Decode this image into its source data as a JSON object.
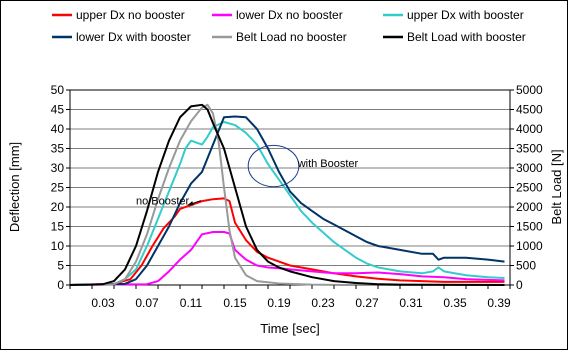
{
  "chart_data": {
    "type": "line",
    "xlabel": "Time [sec]",
    "ylabel": "Deflection [mm]",
    "y2label": "Belt Load [N]",
    "xlim": [
      0,
      0.4
    ],
    "ylim": [
      0,
      50
    ],
    "y2lim": [
      0,
      5000
    ],
    "x_ticks": [
      0.03,
      0.07,
      0.11,
      0.15,
      0.19,
      0.23,
      0.27,
      0.31,
      0.35,
      0.39
    ],
    "x_tick_labels": [
      "0.03",
      "0.07",
      "0.11",
      "0.15",
      "0.19",
      "0.23",
      "0.27",
      "0.31",
      "0.35",
      "0.39"
    ],
    "y_ticks": [
      0,
      5,
      10,
      15,
      20,
      25,
      30,
      35,
      40,
      45,
      50
    ],
    "y_tick_labels": [
      "0",
      "5",
      "10",
      "15",
      "20",
      "25",
      "30",
      "35",
      "40",
      "45",
      "50"
    ],
    "y2_ticks": [
      0,
      500,
      1000,
      1500,
      2000,
      2500,
      3000,
      3500,
      4000,
      4500,
      5000
    ],
    "y2_tick_labels": [
      "0",
      "500",
      "1000",
      "1500",
      "2000",
      "2500",
      "3000",
      "3500",
      "4000",
      "4500",
      "5000"
    ],
    "grid": "horizontal",
    "legend_placement": "top",
    "series": [
      {
        "name": "upper Dx no booster",
        "color": "#ff0000",
        "axis": "left",
        "points": [
          [
            0,
            0
          ],
          [
            0.04,
            0.3
          ],
          [
            0.055,
            1.5
          ],
          [
            0.065,
            5
          ],
          [
            0.075,
            10
          ],
          [
            0.085,
            14.5
          ],
          [
            0.095,
            17.5
          ],
          [
            0.1,
            19.5
          ],
          [
            0.11,
            20.5
          ],
          [
            0.12,
            21.5
          ],
          [
            0.13,
            22
          ],
          [
            0.14,
            22.2
          ],
          [
            0.145,
            21.5
          ],
          [
            0.15,
            16
          ],
          [
            0.16,
            11.5
          ],
          [
            0.17,
            8.5
          ],
          [
            0.18,
            7
          ],
          [
            0.19,
            6
          ],
          [
            0.2,
            5
          ],
          [
            0.22,
            4
          ],
          [
            0.24,
            3
          ],
          [
            0.26,
            2.2
          ],
          [
            0.28,
            1.6
          ],
          [
            0.3,
            1.2
          ],
          [
            0.32,
            1
          ],
          [
            0.34,
            0.8
          ],
          [
            0.36,
            0.8
          ],
          [
            0.38,
            0.8
          ],
          [
            0.395,
            0.8
          ]
        ]
      },
      {
        "name": "lower Dx no booster",
        "color": "#ff00ff",
        "axis": "left",
        "points": [
          [
            0,
            0
          ],
          [
            0.07,
            0.2
          ],
          [
            0.08,
            1
          ],
          [
            0.09,
            3.5
          ],
          [
            0.1,
            6.5
          ],
          [
            0.11,
            9
          ],
          [
            0.115,
            11
          ],
          [
            0.12,
            13
          ],
          [
            0.13,
            13.6
          ],
          [
            0.14,
            13.6
          ],
          [
            0.145,
            13.2
          ],
          [
            0.15,
            9
          ],
          [
            0.16,
            6.5
          ],
          [
            0.17,
            5
          ],
          [
            0.18,
            4.5
          ],
          [
            0.19,
            4.3
          ],
          [
            0.2,
            4
          ],
          [
            0.22,
            3.5
          ],
          [
            0.24,
            3
          ],
          [
            0.26,
            3
          ],
          [
            0.28,
            3.2
          ],
          [
            0.3,
            2.8
          ],
          [
            0.32,
            2.2
          ],
          [
            0.34,
            2
          ],
          [
            0.36,
            1.5
          ],
          [
            0.38,
            1.3
          ],
          [
            0.395,
            1.2
          ]
        ]
      },
      {
        "name": "upper Dx with booster",
        "color": "#33cccc",
        "axis": "left",
        "points": [
          [
            0,
            0
          ],
          [
            0.04,
            0.2
          ],
          [
            0.05,
            1.5
          ],
          [
            0.06,
            4
          ],
          [
            0.07,
            10
          ],
          [
            0.08,
            17
          ],
          [
            0.09,
            24
          ],
          [
            0.1,
            31
          ],
          [
            0.105,
            35
          ],
          [
            0.11,
            37
          ],
          [
            0.12,
            36
          ],
          [
            0.125,
            38
          ],
          [
            0.13,
            40.5
          ],
          [
            0.14,
            41.8
          ],
          [
            0.15,
            41
          ],
          [
            0.16,
            39
          ],
          [
            0.17,
            36
          ],
          [
            0.18,
            31
          ],
          [
            0.19,
            27
          ],
          [
            0.2,
            23
          ],
          [
            0.21,
            19
          ],
          [
            0.22,
            16
          ],
          [
            0.23,
            13.5
          ],
          [
            0.24,
            11
          ],
          [
            0.25,
            9
          ],
          [
            0.26,
            7
          ],
          [
            0.27,
            5.5
          ],
          [
            0.28,
            4.5
          ],
          [
            0.3,
            3.5
          ],
          [
            0.32,
            3
          ],
          [
            0.33,
            3.5
          ],
          [
            0.335,
            4.5
          ],
          [
            0.34,
            3.5
          ],
          [
            0.36,
            2.5
          ],
          [
            0.38,
            2
          ],
          [
            0.395,
            1.8
          ]
        ]
      },
      {
        "name": "lower Dx with booster",
        "color": "#003366",
        "axis": "left",
        "points": [
          [
            0,
            0
          ],
          [
            0.05,
            0.3
          ],
          [
            0.06,
            1.5
          ],
          [
            0.07,
            5
          ],
          [
            0.08,
            10
          ],
          [
            0.09,
            15
          ],
          [
            0.1,
            21
          ],
          [
            0.11,
            26
          ],
          [
            0.12,
            29
          ],
          [
            0.13,
            36
          ],
          [
            0.14,
            43
          ],
          [
            0.15,
            43.2
          ],
          [
            0.16,
            43
          ],
          [
            0.17,
            40
          ],
          [
            0.18,
            35
          ],
          [
            0.19,
            29
          ],
          [
            0.2,
            24
          ],
          [
            0.21,
            21
          ],
          [
            0.22,
            19
          ],
          [
            0.23,
            17
          ],
          [
            0.24,
            15.5
          ],
          [
            0.25,
            14
          ],
          [
            0.26,
            12.5
          ],
          [
            0.27,
            11
          ],
          [
            0.28,
            10
          ],
          [
            0.3,
            9
          ],
          [
            0.32,
            8
          ],
          [
            0.33,
            8
          ],
          [
            0.335,
            6.5
          ],
          [
            0.34,
            7
          ],
          [
            0.36,
            7
          ],
          [
            0.38,
            6.5
          ],
          [
            0.395,
            6
          ]
        ]
      },
      {
        "name": "Belt Load no booster",
        "color": "#999999",
        "axis": "right",
        "points": [
          [
            0,
            0
          ],
          [
            0.04,
            20
          ],
          [
            0.05,
            150
          ],
          [
            0.06,
            600
          ],
          [
            0.07,
            1300
          ],
          [
            0.08,
            2200
          ],
          [
            0.09,
            3000
          ],
          [
            0.1,
            3700
          ],
          [
            0.11,
            4200
          ],
          [
            0.12,
            4550
          ],
          [
            0.125,
            4620
          ],
          [
            0.13,
            4400
          ],
          [
            0.135,
            3700
          ],
          [
            0.14,
            2500
          ],
          [
            0.145,
            1400
          ],
          [
            0.15,
            700
          ],
          [
            0.16,
            250
          ],
          [
            0.17,
            100
          ],
          [
            0.19,
            40
          ],
          [
            0.22,
            10
          ],
          [
            0.25,
            0
          ],
          [
            0.395,
            0
          ]
        ]
      },
      {
        "name": "Belt Load with booster",
        "color": "#000000",
        "axis": "right",
        "points": [
          [
            0,
            0
          ],
          [
            0.03,
            20
          ],
          [
            0.04,
            100
          ],
          [
            0.05,
            400
          ],
          [
            0.06,
            1000
          ],
          [
            0.07,
            1900
          ],
          [
            0.08,
            2900
          ],
          [
            0.09,
            3700
          ],
          [
            0.1,
            4300
          ],
          [
            0.11,
            4580
          ],
          [
            0.12,
            4620
          ],
          [
            0.125,
            4500
          ],
          [
            0.13,
            4150
          ],
          [
            0.14,
            3500
          ],
          [
            0.15,
            2500
          ],
          [
            0.16,
            1500
          ],
          [
            0.17,
            900
          ],
          [
            0.18,
            600
          ],
          [
            0.19,
            450
          ],
          [
            0.2,
            350
          ],
          [
            0.22,
            200
          ],
          [
            0.24,
            100
          ],
          [
            0.26,
            50
          ],
          [
            0.28,
            20
          ],
          [
            0.3,
            10
          ],
          [
            0.395,
            0
          ]
        ]
      }
    ],
    "annotations": [
      {
        "text": "with Booster",
        "x": 0.207,
        "y": 30.2,
        "ellipse": {
          "cx": 0.185,
          "cy": 30.5,
          "rx": 0.023,
          "ry": 5.3
        }
      },
      {
        "text": "no Booster",
        "x": 0.06,
        "y": 20.6,
        "arrow_to": [
          0.107,
          20.5
        ]
      }
    ]
  }
}
